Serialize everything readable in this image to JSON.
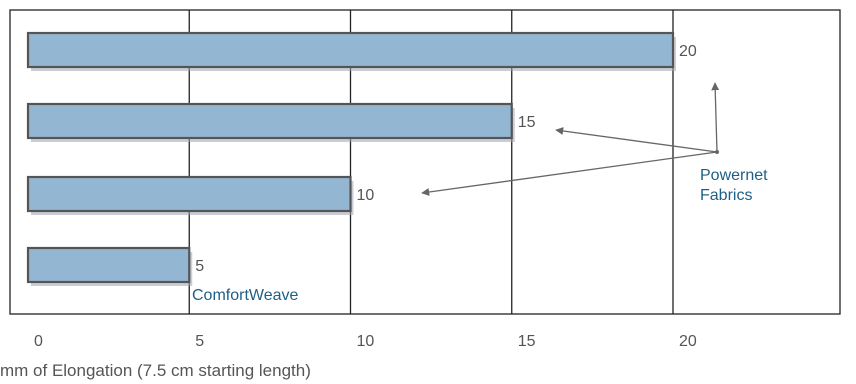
{
  "chart_data": {
    "type": "bar",
    "orientation": "horizontal",
    "categories": [
      "",
      "",
      "",
      ""
    ],
    "values": [
      20,
      15,
      10,
      5
    ],
    "data_labels": [
      "20",
      "15",
      "10",
      "5"
    ],
    "xlabel": "mm of Elongation (7.5 cm starting length)",
    "xlim": [
      0,
      24.5
    ],
    "xticks": [
      0,
      5,
      10,
      15,
      20
    ],
    "xtick_labels": [
      "0",
      "5",
      "10",
      "15",
      "20"
    ],
    "grid": true,
    "bar_color": "#93b6d3",
    "bar_edge_color": "#555555",
    "annotations": [
      {
        "text_lines": [
          "Powernet",
          "Fabrics"
        ],
        "color": "#1f5f86",
        "points_to_values": [
          20,
          15,
          10
        ]
      },
      {
        "text_lines": [
          "ComfortWeave"
        ],
        "color": "#1f5f86",
        "points_to_values": [
          5
        ]
      }
    ]
  }
}
